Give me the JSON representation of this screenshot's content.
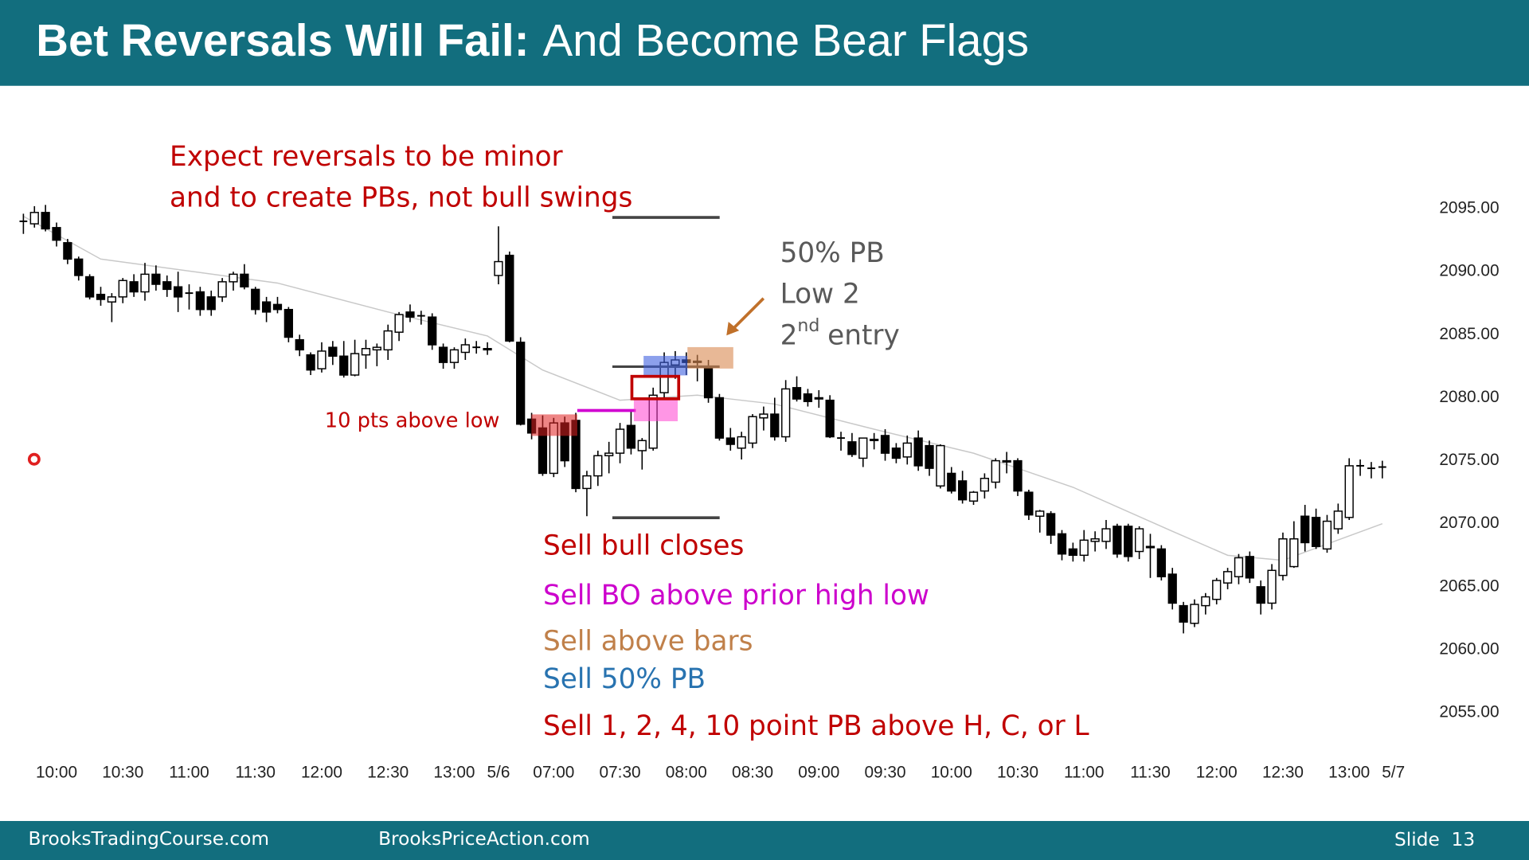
{
  "title": {
    "bold": "Bet Reversals Will Fail:",
    "rest": "And Become Bear Flags"
  },
  "notes": {
    "expect1": "Expect reversals to be minor",
    "expect2": "and to create PBs, not bull swings",
    "pb50": "50% PB",
    "low2": "Low 2",
    "entry_num": "2",
    "entry_sup": "nd",
    "entry_rest": "entry",
    "pts": "10 pts above low",
    "sell1": "Sell bull closes",
    "sell2": "Sell BO above prior high low",
    "sell3": "Sell above bars",
    "sell4": "Sell 50% PB",
    "sell5": "Sell 1, 2, 4, 10 point PB above H, C, or L"
  },
  "footer": {
    "left": "BrooksTradingCourse.com",
    "middle": "BrooksPriceAction.com",
    "slide": "Slide  13"
  },
  "chart_data": {
    "type": "candlestick",
    "up_color": "#ffffff",
    "down_color": "#000000",
    "ylim": [
      2052,
      2100
    ],
    "yticks": [
      {
        "value": 2095,
        "label": "2095.00"
      },
      {
        "value": 2090,
        "label": "2090.00"
      },
      {
        "value": 2085,
        "label": "2085.00"
      },
      {
        "value": 2080,
        "label": "2080.00"
      },
      {
        "value": 2075,
        "label": "2075.00"
      },
      {
        "value": 2070,
        "label": "2070.00"
      },
      {
        "value": 2065,
        "label": "2065.00"
      },
      {
        "value": 2060,
        "label": "2060.00"
      },
      {
        "value": 2055,
        "label": "2055.00"
      }
    ],
    "categories": [
      null,
      null,
      null,
      "10:00",
      null,
      null,
      null,
      null,
      null,
      "10:30",
      null,
      null,
      null,
      null,
      null,
      "11:00",
      null,
      null,
      null,
      null,
      null,
      "11:30",
      null,
      null,
      null,
      null,
      null,
      "12:00",
      null,
      null,
      null,
      null,
      null,
      "12:30",
      null,
      null,
      null,
      null,
      null,
      "13:00",
      null,
      null,
      null,
      "5/6",
      null,
      null,
      null,
      null,
      "07:00",
      null,
      null,
      null,
      null,
      null,
      "07:30",
      null,
      null,
      null,
      null,
      null,
      "08:00",
      null,
      null,
      null,
      null,
      null,
      "08:30",
      null,
      null,
      null,
      null,
      null,
      "09:00",
      null,
      null,
      null,
      null,
      null,
      "09:30",
      null,
      null,
      null,
      null,
      null,
      "10:00",
      null,
      null,
      null,
      null,
      null,
      "10:30",
      null,
      null,
      null,
      null,
      null,
      "11:00",
      null,
      null,
      null,
      null,
      null,
      "11:30",
      null,
      null,
      null,
      null,
      null,
      "12:00",
      null,
      null,
      null,
      null,
      null,
      "12:30",
      null,
      null,
      null,
      null,
      null,
      "13:00",
      null,
      null,
      null,
      "5/7"
    ],
    "ohlc": [
      [
        2094,
        2094.6,
        2093,
        2094
      ],
      [
        2093.8,
        2095.2,
        2093.5,
        2094.7
      ],
      [
        2094.7,
        2095.3,
        2093.2,
        2093.4
      ],
      [
        2093.5,
        2093.9,
        2092,
        2092.5
      ],
      [
        2092.3,
        2092.6,
        2090.6,
        2091
      ],
      [
        2091,
        2091.2,
        2089.3,
        2089.7
      ],
      [
        2089.6,
        2089.8,
        2087.8,
        2088
      ],
      [
        2088.2,
        2088.8,
        2087.3,
        2087.8
      ],
      [
        2087.6,
        2088.3,
        2086,
        2088
      ],
      [
        2088,
        2089.5,
        2087.5,
        2089.3
      ],
      [
        2089.2,
        2089.8,
        2088,
        2088.4
      ],
      [
        2088.4,
        2090.7,
        2087.7,
        2089.8
      ],
      [
        2089.8,
        2090.5,
        2088.5,
        2089
      ],
      [
        2089.2,
        2089.7,
        2088,
        2088.6
      ],
      [
        2088.8,
        2090,
        2086.8,
        2088
      ],
      [
        2088.3,
        2089,
        2087,
        2088.3
      ],
      [
        2088.4,
        2088.8,
        2086.5,
        2087
      ],
      [
        2088,
        2088.5,
        2086.5,
        2087
      ],
      [
        2088,
        2089.5,
        2087.6,
        2089.2
      ],
      [
        2089.2,
        2090,
        2088.5,
        2089.8
      ],
      [
        2089.8,
        2090.6,
        2088.6,
        2088.8
      ],
      [
        2088.6,
        2088.8,
        2086.6,
        2087
      ],
      [
        2087.6,
        2088,
        2086,
        2086.8
      ],
      [
        2087.4,
        2088,
        2086.7,
        2087
      ],
      [
        2087,
        2087.2,
        2084.4,
        2084.8
      ],
      [
        2084.6,
        2085,
        2083.3,
        2083.8
      ],
      [
        2083.4,
        2083.6,
        2081.8,
        2082.2
      ],
      [
        2082.3,
        2084.4,
        2082,
        2083.7
      ],
      [
        2084,
        2084.5,
        2082.6,
        2083.3
      ],
      [
        2083.3,
        2084.5,
        2081.6,
        2081.8
      ],
      [
        2081.8,
        2084.6,
        2081.7,
        2083.5
      ],
      [
        2083.4,
        2084.6,
        2082.3,
        2083.9
      ],
      [
        2083.8,
        2084.3,
        2082.5,
        2084
      ],
      [
        2083.8,
        2085.8,
        2083,
        2085.3
      ],
      [
        2085.2,
        2086.8,
        2084.5,
        2086.6
      ],
      [
        2086.8,
        2087.4,
        2086,
        2086.4
      ],
      [
        2086.5,
        2086.9,
        2085.8,
        2086.5
      ],
      [
        2086.4,
        2086.7,
        2083.8,
        2084.2
      ],
      [
        2084,
        2084.3,
        2082.3,
        2082.8
      ],
      [
        2082.8,
        2084,
        2082.3,
        2083.8
      ],
      [
        2083.6,
        2084.7,
        2083,
        2084.2
      ],
      [
        2084,
        2084.5,
        2083.5,
        2084
      ],
      [
        2083.9,
        2084.4,
        2083.4,
        2083.8
      ],
      [
        2089.7,
        2093.6,
        2089,
        2090.8
      ],
      [
        2091.3,
        2091.6,
        2084.4,
        2084.5
      ],
      [
        2084.4,
        2084.8,
        2077.8,
        2077.9
      ],
      [
        2078.3,
        2078.8,
        2076.7,
        2077.2
      ],
      [
        2077.6,
        2078.6,
        2073.8,
        2074
      ],
      [
        2074,
        2078.4,
        2073.7,
        2078
      ],
      [
        2078,
        2078.5,
        2074.5,
        2075
      ],
      [
        2078.2,
        2078.8,
        2072.5,
        2072.8
      ],
      [
        2072.8,
        2074.2,
        2070.6,
        2073.8
      ],
      [
        2073.8,
        2075.8,
        2073,
        2075.4
      ],
      [
        2075.4,
        2076.5,
        2074,
        2075.6
      ],
      [
        2075.6,
        2078,
        2074.8,
        2077.5
      ],
      [
        2077.8,
        2078.9,
        2075.5,
        2076
      ],
      [
        2075.8,
        2076.8,
        2074.3,
        2076.6
      ],
      [
        2076,
        2080.8,
        2075.8,
        2080.2
      ],
      [
        2080.4,
        2083.6,
        2080,
        2082.8
      ],
      [
        2082.6,
        2083.7,
        2081.5,
        2083
      ],
      [
        2083,
        2083.6,
        2081.8,
        2082.8
      ],
      [
        2082.8,
        2083.4,
        2081.3,
        2082.9
      ],
      [
        2082.5,
        2083,
        2079.6,
        2080
      ],
      [
        2080,
        2080.3,
        2076.6,
        2076.8
      ],
      [
        2076.8,
        2077.6,
        2075.8,
        2076.3
      ],
      [
        2076,
        2077.3,
        2075.1,
        2076.9
      ],
      [
        2076.4,
        2078.7,
        2076,
        2078.5
      ],
      [
        2078.4,
        2079.3,
        2077.4,
        2078.7
      ],
      [
        2078.7,
        2080,
        2076.6,
        2076.9
      ],
      [
        2076.9,
        2081.4,
        2076.5,
        2080.7
      ],
      [
        2080.8,
        2081.7,
        2079.7,
        2079.9
      ],
      [
        2080.3,
        2080.7,
        2079.3,
        2079.7
      ],
      [
        2080,
        2080.6,
        2079.2,
        2079.9
      ],
      [
        2079.8,
        2080.2,
        2076.8,
        2076.9
      ],
      [
        2076.8,
        2077.3,
        2075.8,
        2076.8
      ],
      [
        2076.5,
        2077.2,
        2075.3,
        2075.5
      ],
      [
        2075.2,
        2076.8,
        2074.5,
        2076.8
      ],
      [
        2076.7,
        2077.2,
        2075.9,
        2076.6
      ],
      [
        2077,
        2077.5,
        2075,
        2075.6
      ],
      [
        2076,
        2076.4,
        2074.8,
        2075.2
      ],
      [
        2075.3,
        2077,
        2074.7,
        2076.4
      ],
      [
        2076.8,
        2077.4,
        2074.2,
        2074.6
      ],
      [
        2076.2,
        2076.6,
        2073.8,
        2074.4
      ],
      [
        2073,
        2076.3,
        2072.8,
        2076.2
      ],
      [
        2074,
        2074.5,
        2072.4,
        2072.6
      ],
      [
        2073.4,
        2074.2,
        2071.6,
        2071.9
      ],
      [
        2071.8,
        2072.6,
        2071.5,
        2072.5
      ],
      [
        2072.6,
        2074,
        2072,
        2073.6
      ],
      [
        2073.3,
        2075.2,
        2072.8,
        2075
      ],
      [
        2075,
        2075.7,
        2074,
        2074.9
      ],
      [
        2075,
        2075.2,
        2072.2,
        2072.6
      ],
      [
        2072.5,
        2072.7,
        2070.3,
        2070.7
      ],
      [
        2070.6,
        2071.1,
        2069.3,
        2071
      ],
      [
        2070.8,
        2071,
        2068.4,
        2069.1
      ],
      [
        2069.2,
        2069.5,
        2067.1,
        2067.6
      ],
      [
        2068,
        2068.5,
        2067,
        2067.5
      ],
      [
        2067.5,
        2069.5,
        2067,
        2068.7
      ],
      [
        2068.6,
        2069.4,
        2067.8,
        2068.8
      ],
      [
        2068.6,
        2070.3,
        2068,
        2069.6
      ],
      [
        2069.8,
        2070,
        2067.3,
        2067.6
      ],
      [
        2069.8,
        2070,
        2067,
        2067.4
      ],
      [
        2067.8,
        2069.8,
        2067.2,
        2069.6
      ],
      [
        2068.2,
        2069.2,
        2065.7,
        2068.1
      ],
      [
        2068,
        2068.3,
        2065.5,
        2065.8
      ],
      [
        2066,
        2066.5,
        2063.2,
        2063.7
      ],
      [
        2063.5,
        2063.8,
        2061.3,
        2062.2
      ],
      [
        2062.1,
        2064,
        2061.8,
        2063.6
      ],
      [
        2063.5,
        2064.5,
        2062.8,
        2064.2
      ],
      [
        2064,
        2065.7,
        2063.6,
        2065.5
      ],
      [
        2065.3,
        2066.5,
        2064.8,
        2066.2
      ],
      [
        2065.8,
        2067.6,
        2065.2,
        2067.3
      ],
      [
        2067.4,
        2067.8,
        2065.3,
        2065.7
      ],
      [
        2065,
        2065.5,
        2062.8,
        2063.7
      ],
      [
        2063.7,
        2066.8,
        2063.2,
        2066.3
      ],
      [
        2065.9,
        2069.3,
        2065.5,
        2068.8
      ],
      [
        2066.6,
        2070.2,
        2066.5,
        2068.8
      ],
      [
        2070.6,
        2071.5,
        2067.8,
        2068.5
      ],
      [
        2070.5,
        2071.2,
        2068,
        2068.2
      ],
      [
        2068,
        2070.7,
        2067.7,
        2070.2
      ],
      [
        2069.6,
        2071.6,
        2069.2,
        2071
      ],
      [
        2070.5,
        2075.2,
        2070.3,
        2074.6
      ],
      [
        2074.6,
        2075.1,
        2073.8,
        2074.6
      ],
      [
        2074.4,
        2074.9,
        2073.6,
        2074.4
      ],
      [
        2074.5,
        2075,
        2073.6,
        2074.5
      ],
      null
    ],
    "ma": {
      "color": "#c8c8c8",
      "x": [
        0,
        7,
        23,
        33,
        42,
        47,
        54,
        61,
        68,
        77,
        86,
        95,
        104,
        109,
        114,
        123
      ],
      "values": [
        2094.4,
        2091,
        2089.1,
        2086.8,
        2084.9,
        2082.2,
        2079.8,
        2080.2,
        2079.5,
        2077.5,
        2075.6,
        2072.9,
        2069.4,
        2067.5,
        2067.1,
        2070
      ]
    }
  }
}
